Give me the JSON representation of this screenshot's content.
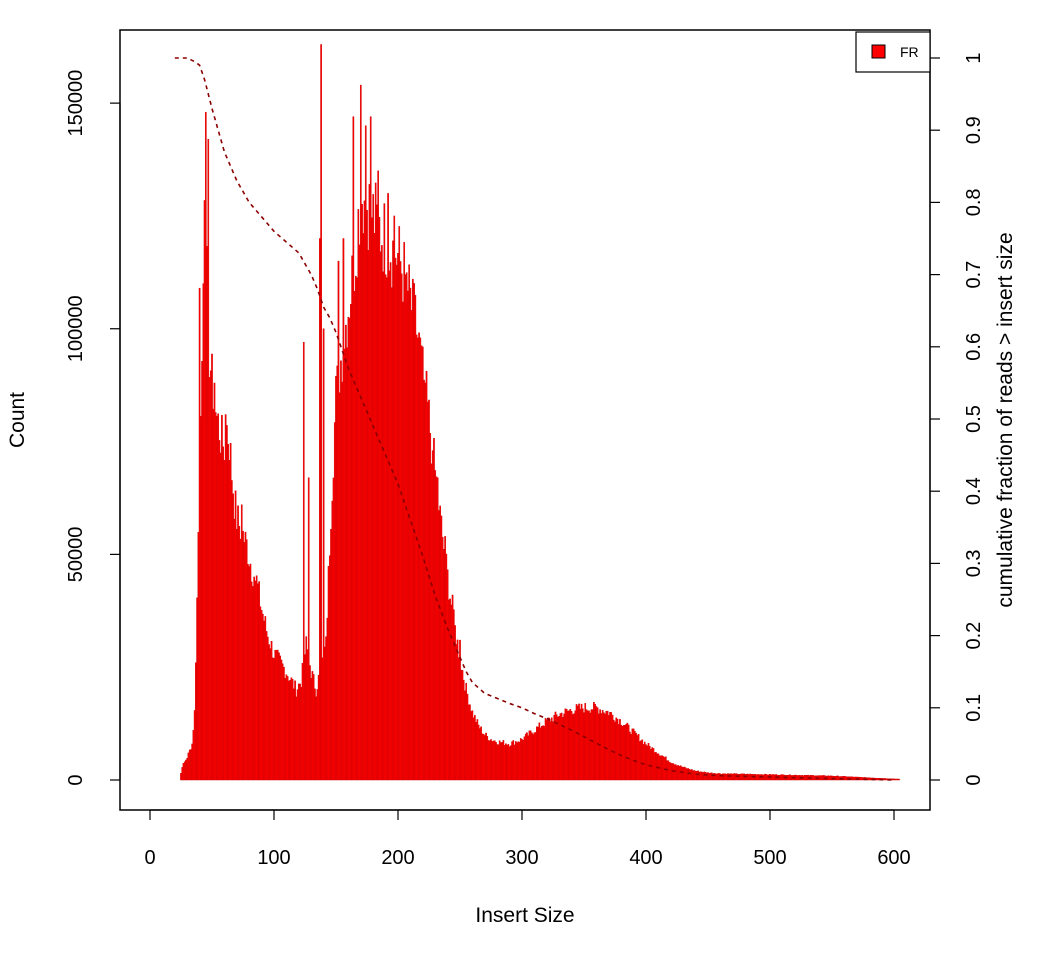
{
  "chart_data": {
    "type": "bar",
    "xlabel": "Insert Size",
    "ylabel": "Count",
    "y2label": "cumulative fraction of reads > insert size",
    "xlim": [
      0,
      600
    ],
    "ylim": [
      0,
      160000
    ],
    "y2lim": [
      0,
      1
    ],
    "x_ticks": [
      0,
      100,
      200,
      300,
      400,
      500,
      600
    ],
    "y_ticks": [
      0,
      50000,
      100000,
      150000
    ],
    "y2_ticks": [
      0,
      0.1,
      0.2,
      0.3,
      0.4,
      0.5,
      0.6,
      0.7,
      0.8,
      0.9,
      1
    ],
    "grid": false,
    "legend": {
      "position": "top-right",
      "entries": [
        {
          "label": "FR",
          "color": "#ff0000"
        }
      ]
    },
    "histogram": {
      "name": "FR",
      "color": "#ff0000",
      "outline_color": "#cc0000",
      "bin_width": 1,
      "x_range": [
        20,
        604
      ],
      "profile_points": [
        [
          20,
          0
        ],
        [
          24,
          0
        ],
        [
          26,
          3000
        ],
        [
          30,
          5000
        ],
        [
          34,
          8000
        ],
        [
          36,
          15000
        ],
        [
          38,
          40000
        ],
        [
          40,
          70000
        ],
        [
          42,
          100000
        ],
        [
          44,
          120000
        ],
        [
          46,
          110000
        ],
        [
          48,
          95000
        ],
        [
          50,
          88000
        ],
        [
          52,
          85000
        ],
        [
          54,
          80000
        ],
        [
          56,
          78000
        ],
        [
          58,
          75000
        ],
        [
          60,
          74000
        ],
        [
          62,
          78000
        ],
        [
          64,
          75000
        ],
        [
          66,
          68000
        ],
        [
          68,
          62000
        ],
        [
          70,
          58000
        ],
        [
          74,
          55000
        ],
        [
          78,
          52000
        ],
        [
          82,
          47000
        ],
        [
          86,
          44000
        ],
        [
          90,
          38000
        ],
        [
          95,
          32000
        ],
        [
          100,
          28000
        ],
        [
          110,
          24000
        ],
        [
          118,
          20000
        ],
        [
          122,
          22000
        ],
        [
          126,
          30000
        ],
        [
          130,
          24000
        ],
        [
          134,
          20000
        ],
        [
          138,
          25000
        ],
        [
          142,
          30000
        ],
        [
          146,
          60000
        ],
        [
          150,
          85000
        ],
        [
          155,
          95000
        ],
        [
          160,
          105000
        ],
        [
          165,
          115000
        ],
        [
          170,
          130000
        ],
        [
          175,
          128000
        ],
        [
          180,
          125000
        ],
        [
          185,
          122000
        ],
        [
          190,
          120000
        ],
        [
          195,
          118000
        ],
        [
          200,
          116000
        ],
        [
          205,
          112000
        ],
        [
          210,
          106000
        ],
        [
          215,
          100000
        ],
        [
          220,
          90000
        ],
        [
          225,
          80000
        ],
        [
          230,
          68000
        ],
        [
          235,
          56000
        ],
        [
          240,
          45000
        ],
        [
          245,
          35000
        ],
        [
          250,
          27000
        ],
        [
          255,
          20000
        ],
        [
          260,
          15000
        ],
        [
          265,
          12000
        ],
        [
          270,
          10000
        ],
        [
          275,
          9000
        ],
        [
          280,
          8500
        ],
        [
          290,
          8000
        ],
        [
          300,
          9000
        ],
        [
          310,
          11000
        ],
        [
          320,
          13000
        ],
        [
          330,
          14500
        ],
        [
          340,
          15500
        ],
        [
          350,
          16000
        ],
        [
          360,
          16000
        ],
        [
          370,
          15000
        ],
        [
          380,
          13000
        ],
        [
          390,
          10500
        ],
        [
          400,
          8000
        ],
        [
          410,
          6000
        ],
        [
          420,
          4000
        ],
        [
          430,
          2800
        ],
        [
          440,
          2000
        ],
        [
          450,
          1600
        ],
        [
          460,
          1400
        ],
        [
          500,
          1200
        ],
        [
          550,
          900
        ],
        [
          580,
          500
        ],
        [
          604,
          200
        ]
      ],
      "spikes": [
        [
          40,
          109000
        ],
        [
          43,
          110000
        ],
        [
          45,
          148000
        ],
        [
          47,
          142000
        ],
        [
          52,
          88000
        ],
        [
          61,
          81000
        ],
        [
          74,
          61000
        ],
        [
          84,
          45000
        ],
        [
          124,
          97000
        ],
        [
          128,
          67000
        ],
        [
          137,
          120000
        ],
        [
          138,
          163000
        ],
        [
          140,
          100000
        ],
        [
          152,
          115000
        ],
        [
          156,
          120000
        ],
        [
          164,
          147000
        ],
        [
          170,
          154000
        ],
        [
          174,
          145000
        ],
        [
          178,
          147000
        ],
        [
          184,
          135000
        ],
        [
          192,
          130000
        ],
        [
          197,
          125000
        ],
        [
          206,
          112000
        ],
        [
          212,
          111000
        ],
        [
          218,
          98000
        ],
        [
          222,
          88000
        ],
        [
          228,
          73000
        ],
        [
          232,
          67000
        ],
        [
          238,
          54000
        ],
        [
          244,
          41000
        ],
        [
          250,
          31000
        ]
      ],
      "spike_jitter": 0.08
    },
    "cumulative": {
      "name": "cumulative fraction of reads > insert size",
      "axis": "right",
      "color": "#8b0000",
      "style": "dashed",
      "points": [
        [
          20,
          1.0
        ],
        [
          30,
          1.0
        ],
        [
          36,
          0.995
        ],
        [
          40,
          0.99
        ],
        [
          44,
          0.97
        ],
        [
          50,
          0.93
        ],
        [
          55,
          0.9
        ],
        [
          60,
          0.87
        ],
        [
          65,
          0.85
        ],
        [
          70,
          0.83
        ],
        [
          80,
          0.8
        ],
        [
          90,
          0.78
        ],
        [
          100,
          0.76
        ],
        [
          110,
          0.745
        ],
        [
          120,
          0.73
        ],
        [
          125,
          0.715
        ],
        [
          130,
          0.7
        ],
        [
          135,
          0.68
        ],
        [
          140,
          0.655
        ],
        [
          145,
          0.64
        ],
        [
          150,
          0.62
        ],
        [
          160,
          0.57
        ],
        [
          170,
          0.53
        ],
        [
          180,
          0.49
        ],
        [
          190,
          0.45
        ],
        [
          200,
          0.41
        ],
        [
          210,
          0.36
        ],
        [
          220,
          0.31
        ],
        [
          230,
          0.255
        ],
        [
          240,
          0.21
        ],
        [
          250,
          0.17
        ],
        [
          255,
          0.15
        ],
        [
          260,
          0.135
        ],
        [
          270,
          0.12
        ],
        [
          280,
          0.113
        ],
        [
          290,
          0.106
        ],
        [
          300,
          0.1
        ],
        [
          310,
          0.092
        ],
        [
          320,
          0.085
        ],
        [
          330,
          0.077
        ],
        [
          340,
          0.069
        ],
        [
          350,
          0.06
        ],
        [
          360,
          0.051
        ],
        [
          370,
          0.042
        ],
        [
          380,
          0.034
        ],
        [
          390,
          0.027
        ],
        [
          400,
          0.021
        ],
        [
          420,
          0.013
        ],
        [
          440,
          0.008
        ],
        [
          460,
          0.006
        ],
        [
          500,
          0.004
        ],
        [
          550,
          0.002
        ],
        [
          600,
          0.0
        ]
      ]
    }
  }
}
